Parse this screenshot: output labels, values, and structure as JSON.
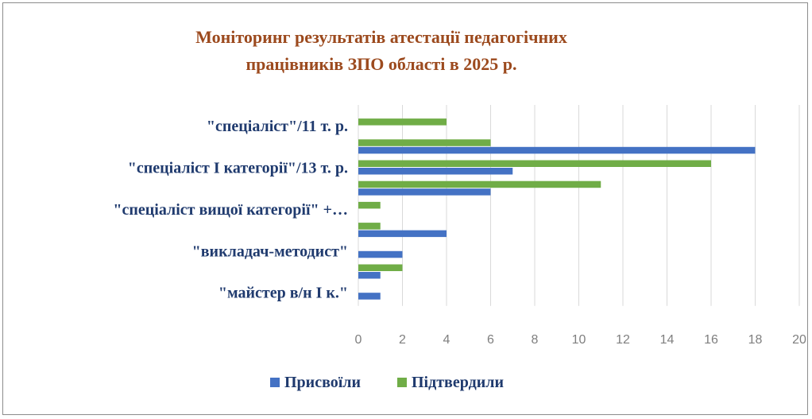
{
  "chart_data": {
    "type": "bar",
    "orientation": "horizontal",
    "title": "Моніторинг результатів атестації педагогічних працівників ЗПО області в 2025 р.",
    "title_lines": [
      "Моніторинг результатів атестації педагогічних",
      "працівників ЗПО області в 2025 р."
    ],
    "category_labels_shown": [
      "\"спеціаліст\"/11 т. р.",
      "\"спеціаліст І категорії\"/13 т. р.",
      "\"спеціаліст вищої категорії\" +…",
      "\"викладач-методист\"",
      "\"майстер в/н І к.\""
    ],
    "rows": [
      {
        "label": "\"спеціаліст\"/11 т. р.",
        "Присвоїли": 0,
        "Підтвердили": 4
      },
      {
        "label": "",
        "Присвоїли": 18,
        "Підтвердили": 6
      },
      {
        "label": "\"спеціаліст І категорії\"/13 т. р.",
        "Присвоїли": 7,
        "Підтвердили": 16
      },
      {
        "label": "",
        "Присвоїли": 6,
        "Підтвердили": 11
      },
      {
        "label": "\"спеціаліст вищої категорії\" +…",
        "Присвоїли": 0,
        "Підтвердили": 1
      },
      {
        "label": "",
        "Присвоїли": 4,
        "Підтвердили": 1
      },
      {
        "label": "\"викладач-методист\"",
        "Присвоїли": 2,
        "Підтвердили": 0
      },
      {
        "label": "",
        "Присвоїли": 1,
        "Підтвердили": 2
      },
      {
        "label": "\"майстер в/н І к.\"",
        "Присвоїли": 1,
        "Підтвердили": 0
      }
    ],
    "series": [
      {
        "name": "Присвоїли",
        "color": "#4472c4"
      },
      {
        "name": "Підтвердили",
        "color": "#70ad47"
      }
    ],
    "xlim": [
      0,
      20
    ],
    "xticks": [
      0,
      2,
      4,
      6,
      8,
      10,
      12,
      14,
      16,
      18,
      20
    ],
    "grid": "vertical",
    "legend_position": "bottom"
  }
}
